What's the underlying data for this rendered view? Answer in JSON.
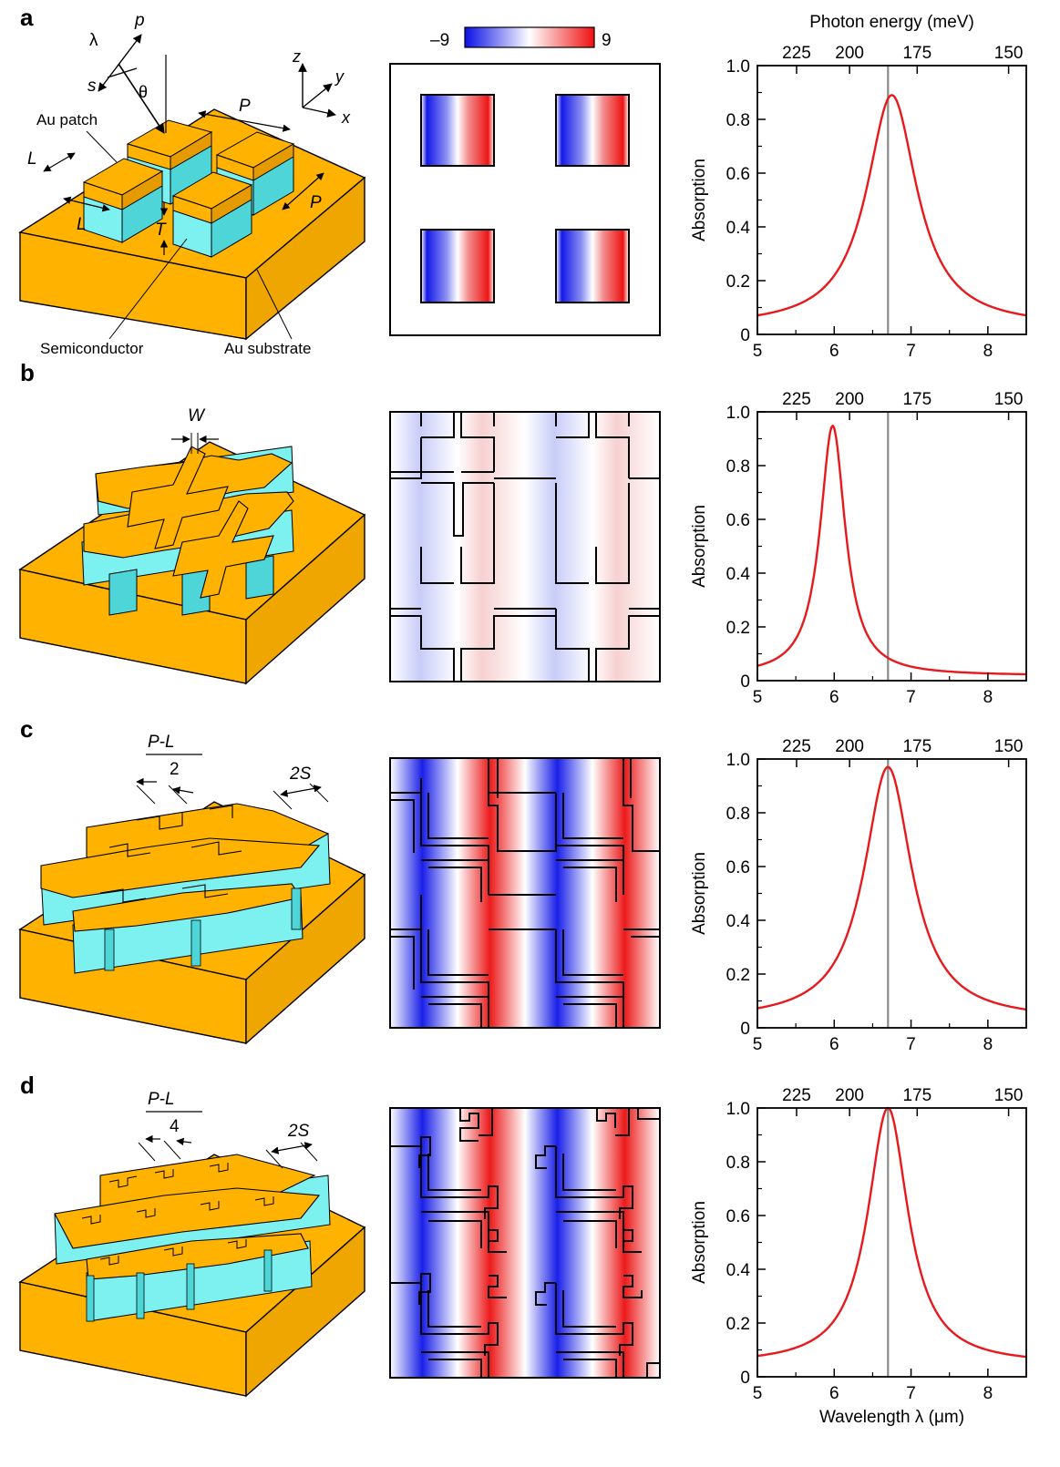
{
  "colors": {
    "gold": "#FFB300",
    "gold_dark": "#E59B00",
    "cyan": "#7DF0F0",
    "cyan_dark": "#4DD5D8",
    "curve": "#E8191C",
    "marker": "#8A8A8A",
    "map_neg": "#0A10E6",
    "map_pos": "#F01010"
  },
  "colorbar": {
    "min_label": "–9",
    "max_label": "9"
  },
  "panel_a_labels": {
    "lambda": "λ",
    "p": "p",
    "s": "s",
    "theta": "θ",
    "z": "z",
    "y": "y",
    "x": "x",
    "au_patch": "Au patch",
    "L1": "L",
    "L2": "L",
    "P1": "P",
    "P2": "P",
    "T": "T",
    "semiconductor": "Semiconductor",
    "au_substrate": "Au substrate"
  },
  "panel_b_labels": {
    "W": "W"
  },
  "panel_c_labels": {
    "frac_num": "P-L",
    "frac_den": "2",
    "twoS": "2S"
  },
  "panel_d_labels": {
    "frac_num": "P-L",
    "frac_den": "4",
    "twoS": "2S"
  },
  "chart_data": [
    {
      "panel": "a",
      "type": "line",
      "xlabel": "",
      "ylabel": "Absorption",
      "top_xlabel": "Photon energy (meV)",
      "xlim": [
        5,
        8.5
      ],
      "ylim": [
        0,
        1.0
      ],
      "x_ticks": [
        5,
        6,
        7,
        8
      ],
      "y_ticks": [
        "0",
        "0.2",
        "0.4",
        "0.6",
        "0.8",
        "1.0"
      ],
      "top_ticks": [
        "225",
        "200",
        "175",
        "150"
      ],
      "marker_x": 6.7,
      "peak_x": 6.75,
      "peak_y": 0.89,
      "base": 0.028,
      "gamma": 0.4,
      "tail_slope": 0
    },
    {
      "panel": "b",
      "type": "line",
      "xlabel": "",
      "ylabel": "Absorption",
      "top_xlabel": "",
      "xlim": [
        5,
        8.5
      ],
      "ylim": [
        0,
        1.0
      ],
      "x_ticks": [
        5,
        6,
        7,
        8
      ],
      "y_ticks": [
        "0",
        "0.2",
        "0.4",
        "0.6",
        "0.8",
        "1.0"
      ],
      "top_ticks": [
        "225",
        "200",
        "175",
        "150"
      ],
      "marker_x": 6.7,
      "peak_x": 5.98,
      "peak_y": 0.93,
      "base": 0.0,
      "gamma": 0.2,
      "tail_slope": 0.018
    },
    {
      "panel": "c",
      "type": "line",
      "xlabel": "",
      "ylabel": "Absorption",
      "top_xlabel": "",
      "xlim": [
        5,
        8.5
      ],
      "ylim": [
        0,
        1.0
      ],
      "x_ticks": [
        5,
        6,
        7,
        8
      ],
      "y_ticks": [
        "0",
        "0.2",
        "0.4",
        "0.6",
        "0.8",
        "1.0"
      ],
      "top_ticks": [
        "225",
        "200",
        "175",
        "150"
      ],
      "marker_x": 6.7,
      "peak_x": 6.7,
      "peak_y": 0.97,
      "base": 0.028,
      "gamma": 0.38,
      "tail_slope": 0
    },
    {
      "panel": "d",
      "type": "line",
      "xlabel": "Wavelength λ (μm)",
      "ylabel": "Absorption",
      "top_xlabel": "",
      "xlim": [
        5,
        8.5
      ],
      "ylim": [
        0,
        1.0
      ],
      "x_ticks": [
        5,
        6,
        7,
        8
      ],
      "y_ticks": [
        "0",
        "0.2",
        "0.4",
        "0.6",
        "0.8",
        "1.0"
      ],
      "top_ticks": [
        "225",
        "200",
        "175",
        "150"
      ],
      "marker_x": 6.7,
      "peak_x": 6.7,
      "peak_y": 1.0,
      "base": 0.045,
      "gamma": 0.32,
      "tail_slope": 0
    }
  ],
  "panel_letters": [
    "a",
    "b",
    "c",
    "d"
  ]
}
